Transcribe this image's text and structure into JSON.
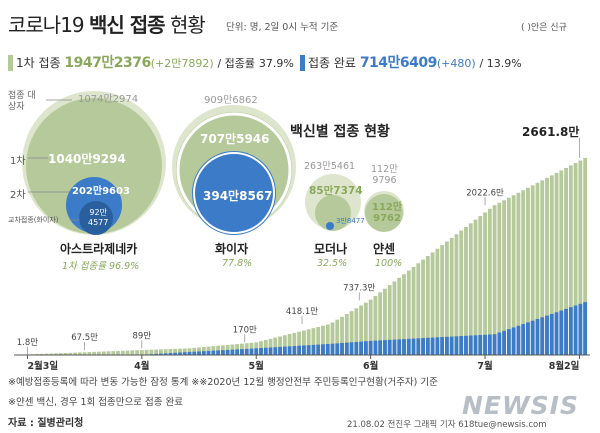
{
  "header": {
    "title_part1": "코로나19",
    "title_part2": "백신 접종",
    "title_part3": "현황",
    "unit": "단위: 명, 2일 0시 누적 기준",
    "paren_note": "( )안은 신규"
  },
  "summary": {
    "first_label": "1차 접종",
    "first_value": "1947만2376",
    "first_new": "(+2만7892)",
    "first_rate_label": "/ 접종률",
    "first_rate": "37.9%",
    "full_label": "접종 완료",
    "full_value": "714만6409",
    "full_new": "(+480)",
    "full_rate": "/ 13.9%"
  },
  "colors": {
    "green": "#b5c99a",
    "green_text": "#8aa85c",
    "light_green": "#dde6cc",
    "blue": "#3b7bc8",
    "dark_blue": "#2a5f9e"
  },
  "vaccines": {
    "subtitle": "백신별 접종 현황",
    "legend_target": "접종 대상자",
    "legend_first": "1차",
    "legend_second": "2차",
    "legend_cross": "교차접종(화이자)",
    "az": {
      "name": "아스트라제네카",
      "target": "1074만2974",
      "first": "1040만9294",
      "second": "202만9603",
      "cross_line1": "92만",
      "cross_line2": "4577",
      "rate": "1차 접종률 96.9%"
    },
    "pfizer": {
      "name": "화이자",
      "target": "909만6862",
      "first": "707만5946",
      "second": "394만8567",
      "rate": "77.8%"
    },
    "moderna": {
      "name": "모더나",
      "target": "263만5461",
      "first": "85만7374",
      "second": "3만8477",
      "rate": "32.5%"
    },
    "janssen": {
      "name": "얀센",
      "target_line1": "112만",
      "target_line2": "9796",
      "first_line1": "112만",
      "first_line2": "9762",
      "rate": "100%"
    }
  },
  "chart_data": {
    "type": "bar",
    "title": "",
    "x_ticks": [
      "2월3일",
      "4월",
      "5월",
      "6월",
      "7월",
      "8월2일"
    ],
    "first_dose_total_label": "2661.8만",
    "annotations": [
      {
        "label": "1.8만",
        "value": 1.8
      },
      {
        "label": "67.5만",
        "value": 67.5
      },
      {
        "label": "89만",
        "value": 89
      },
      {
        "label": "170만",
        "value": 170
      },
      {
        "label": "418.1만",
        "value": 418.1
      },
      {
        "label": "737.3만",
        "value": 737.3
      },
      {
        "label": "2022.6만",
        "value": 2022.6
      },
      {
        "label": "2661.8만",
        "value": 2661.8
      }
    ],
    "series": [
      {
        "name": "",
        "values": [
          1.8,
          20,
          67.5,
          89,
          170,
          418.1,
          737.3,
          2022.6,
          2661.8
        ]
      },
      {
        "name": "",
        "values": [
          0,
          0,
          5,
          40,
          90,
          150,
          190,
          280,
          714.6
        ]
      }
    ]
  },
  "footer": {
    "note1": "※예방접종등록에 따라 변동 가능한 잠정 통계  ※※2020년 12월 행정안전부 주민등록인구현황(거주자) 기준",
    "note2": "※얀센 백신, 경우 1회 접종만으로 접종 완료",
    "source": "자료 : 질병관리청",
    "credit": "21.08.02 전진우 그래픽 기자 618tue@newsis.com",
    "logo": "NEWSIS"
  }
}
